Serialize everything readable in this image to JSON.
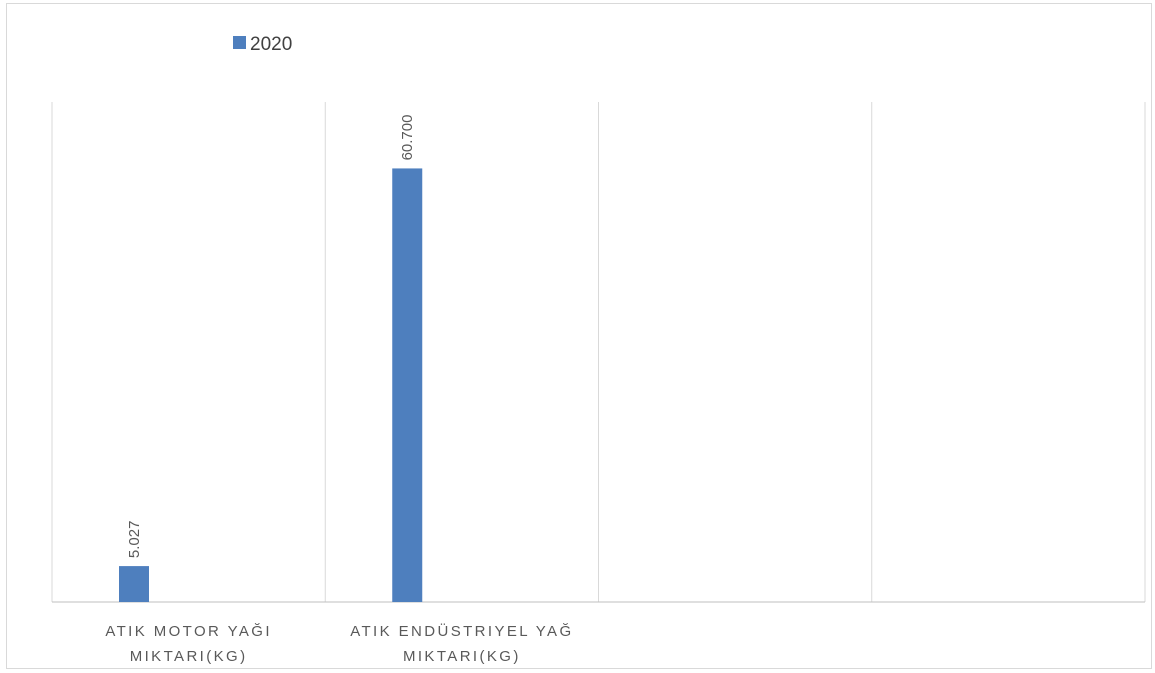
{
  "chart_data": {
    "type": "bar",
    "categories": [
      [
        "ATIK MOTOR YAĞI",
        "MIKTARI(KG)"
      ],
      [
        "ATIK ENDÜSTRIYEL YAĞ",
        "MIKTARI(KG)"
      ],
      [],
      []
    ],
    "series": [
      {
        "name": "2020",
        "color": "#4e7fbe",
        "values": [
          5.027,
          60.7,
          null,
          null
        ],
        "data_labels": [
          "5.027",
          "60.700",
          "",
          ""
        ]
      }
    ],
    "ylim": [
      0,
      70
    ],
    "gridlines": "vertical-category-separators",
    "legend": "top-left"
  }
}
